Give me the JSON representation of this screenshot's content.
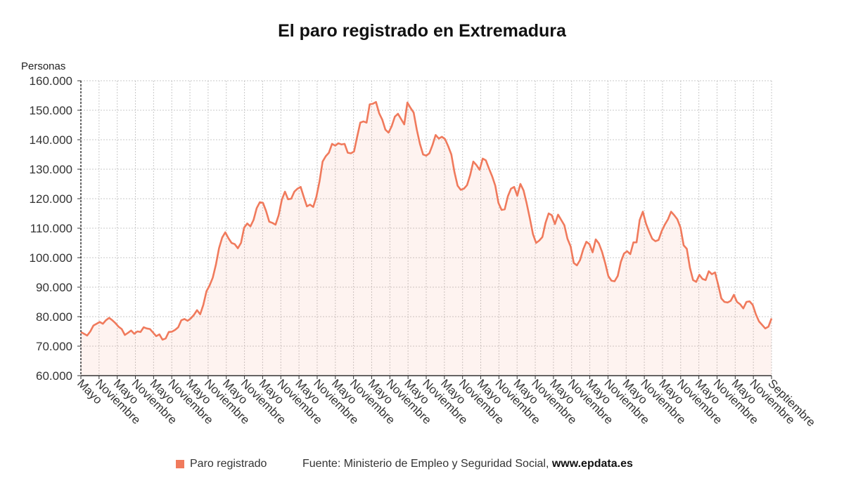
{
  "title": "El paro registrado en Extremadura",
  "y_unit_label": "Personas",
  "legend": {
    "label": "Paro registrado",
    "color": "#f07a5c"
  },
  "source": {
    "prefix": "Fuente: Ministerio de Empleo y Seguridad Social, ",
    "site": "www.epdata.es"
  },
  "chart_data": {
    "type": "area",
    "title": "El paro registrado en Extremadura",
    "ylabel": "Personas",
    "xlabel": "",
    "ylim": [
      60000,
      160000
    ],
    "y_ticks": [
      "60.000",
      "70.000",
      "80.000",
      "90.000",
      "100.000",
      "110.000",
      "120.000",
      "130.000",
      "140.000",
      "150.000",
      "160.000"
    ],
    "x_tick_labels": [
      "Mayo",
      "Noviembre",
      "Mayo",
      "Noviembre",
      "Mayo",
      "Noviembre",
      "Mayo",
      "Noviembre",
      "Mayo",
      "Noviembre",
      "Mayo",
      "Noviembre",
      "Mayo",
      "Noviembre",
      "Mayo",
      "Noviembre",
      "Mayo",
      "Noviembre",
      "Mayo",
      "Noviembre",
      "Mayo",
      "Noviembre",
      "Mayo",
      "Noviembre",
      "Mayo",
      "Noviembre",
      "Mayo",
      "Noviembre",
      "Mayo",
      "Noviembre",
      "Mayo",
      "Noviembre",
      "Mayo",
      "Noviembre",
      "Mayo",
      "Noviembre",
      "Mayo",
      "Noviembre",
      "Septiembre"
    ],
    "grid": true,
    "legend_position": "bottom",
    "series": [
      {
        "name": "Paro registrado",
        "color": "#f07a5c",
        "values": [
          74800,
          74200,
          73600,
          75000,
          77000,
          77600,
          78200,
          77600,
          78800,
          79600,
          78800,
          77800,
          76600,
          75800,
          73800,
          74500,
          75300,
          74200,
          75000,
          74800,
          76400,
          76000,
          75800,
          74600,
          73400,
          74000,
          72200,
          72600,
          74800,
          74900,
          75500,
          76400,
          78800,
          79200,
          78600,
          79400,
          80600,
          82200,
          80800,
          84000,
          88600,
          90600,
          93200,
          97600,
          103200,
          106800,
          108600,
          106600,
          105000,
          104600,
          103200,
          105000,
          110200,
          111600,
          110600,
          112800,
          116800,
          118800,
          118600,
          115800,
          112200,
          111800,
          111200,
          114400,
          119600,
          122400,
          119800,
          120000,
          122400,
          123400,
          124000,
          120600,
          117400,
          118000,
          117200,
          120600,
          125800,
          132600,
          134400,
          135600,
          138600,
          138000,
          138800,
          138400,
          138600,
          135600,
          135400,
          136000,
          141000,
          145800,
          146200,
          145800,
          152000,
          152200,
          152800,
          149000,
          146800,
          143400,
          142400,
          144600,
          147800,
          148800,
          147000,
          145200,
          152600,
          150800,
          149200,
          143400,
          138600,
          135000,
          134600,
          135400,
          138200,
          141600,
          140400,
          141000,
          140200,
          137800,
          135000,
          129000,
          124400,
          123000,
          123400,
          124600,
          128000,
          132600,
          131400,
          129800,
          133600,
          133000,
          130200,
          127600,
          124400,
          118600,
          116200,
          116400,
          120800,
          123400,
          124000,
          121000,
          125000,
          122800,
          118400,
          113400,
          108000,
          105000,
          105800,
          107000,
          111800,
          115000,
          114400,
          111400,
          114600,
          112800,
          111000,
          106400,
          103800,
          98200,
          97400,
          99200,
          102800,
          105400,
          104600,
          101800,
          106200,
          104800,
          102000,
          98200,
          93800,
          92200,
          92000,
          93800,
          98600,
          101400,
          102200,
          101200,
          105200,
          105200,
          112800,
          115600,
          111600,
          108800,
          106400,
          105600,
          106000,
          109000,
          111200,
          113000,
          115600,
          114400,
          113000,
          110200,
          104200,
          103000,
          96600,
          92400,
          91800,
          94200,
          92800,
          92400,
          95400,
          94400,
          95000,
          90800,
          86200,
          85000,
          84800,
          85400,
          87400,
          85000,
          84200,
          82800,
          85000,
          85200,
          84000,
          80800,
          78400,
          77200,
          76000,
          76600,
          79400
        ]
      }
    ]
  }
}
